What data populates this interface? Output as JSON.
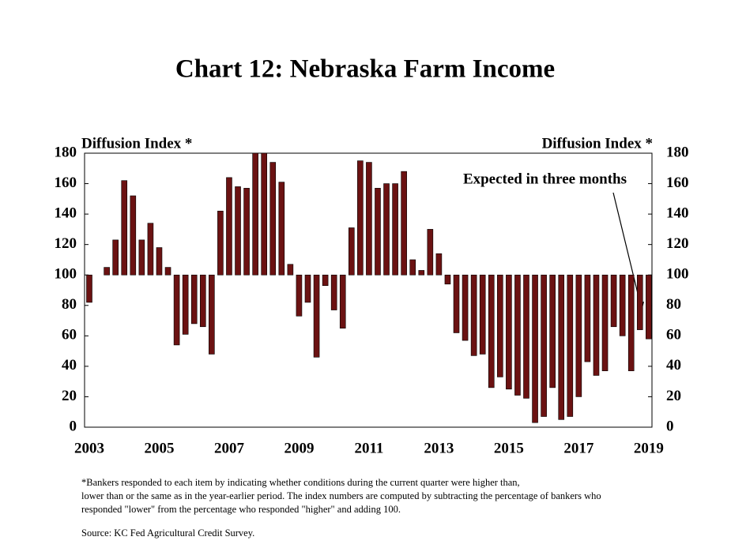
{
  "chart_data": {
    "type": "bar",
    "title": "Chart 12: Nebraska Farm Income",
    "y_label": "Diffusion Index *",
    "y2_label": "Diffusion Index *",
    "annotation": "Expected in three months",
    "footnote": [
      "*Bankers responded to each item by indicating whether conditions during the current quarter were higher than,",
      "lower than or the same as in the year-earlier period.  The index numbers are computed by subtracting the percentage of bankers who",
      "responded \"lower\" from the percentage who responded \"higher\" and adding 100."
    ],
    "source": "Source: KC Fed Agricultural Credit Survey.",
    "categories": [
      "2003",
      null,
      null,
      null,
      null,
      null,
      null,
      null,
      "2005",
      null,
      null,
      null,
      null,
      null,
      null,
      null,
      "2007",
      null,
      null,
      null,
      null,
      null,
      null,
      null,
      "2009",
      null,
      null,
      null,
      null,
      null,
      null,
      null,
      "2011",
      null,
      null,
      null,
      null,
      null,
      null,
      null,
      "2013",
      null,
      null,
      null,
      null,
      null,
      null,
      null,
      "2015",
      null,
      null,
      null,
      null,
      null,
      null,
      null,
      "2017",
      null,
      null,
      null,
      null,
      null,
      null,
      null,
      "2019"
    ],
    "values": [
      82,
      100,
      105,
      123,
      162,
      152,
      123,
      134,
      118,
      105,
      54,
      61,
      68,
      66,
      48,
      142,
      164,
      158,
      157,
      180,
      180,
      174,
      161,
      107,
      73,
      82,
      46,
      93,
      77,
      65,
      131,
      175,
      174,
      157,
      160,
      160,
      168,
      110,
      103,
      130,
      114,
      94,
      62,
      57,
      47,
      48,
      26,
      33,
      25,
      21,
      19,
      3,
      7,
      26,
      5,
      7,
      20,
      43,
      34,
      37,
      66,
      60,
      37,
      64,
      58
    ],
    "color": "#6b1212",
    "baseline": 100,
    "ylim": [
      0,
      180
    ],
    "yticks": [
      0,
      20,
      40,
      60,
      80,
      100,
      120,
      140,
      160,
      180
    ],
    "y2lim": [
      0,
      180
    ],
    "y2ticks": [
      0,
      20,
      40,
      60,
      80,
      100,
      120,
      140,
      160,
      180
    ]
  }
}
